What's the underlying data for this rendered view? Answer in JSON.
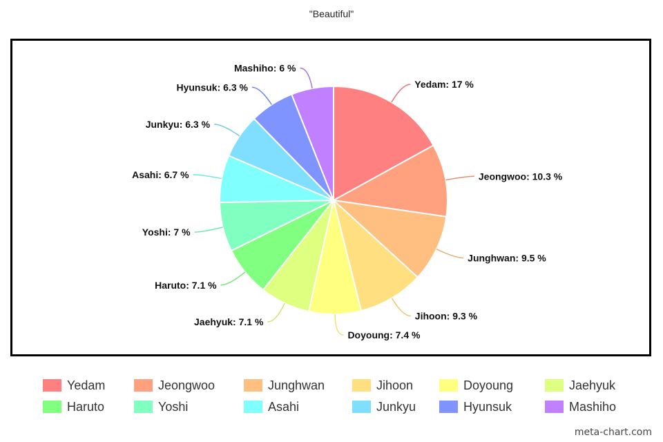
{
  "chart_data": {
    "type": "pie",
    "title": "\"Beautiful\"",
    "unit": "%",
    "slices": [
      {
        "name": "Yedam",
        "value": 17,
        "label": "Yedam: 17 %",
        "color": "#FF8080"
      },
      {
        "name": "Jeongwoo",
        "value": 10.3,
        "label": "Jeongwoo: 10.3 %",
        "color": "#FFA07F"
      },
      {
        "name": "Junghwan",
        "value": 9.5,
        "label": "Junghwan: 9.5 %",
        "color": "#FFBF80"
      },
      {
        "name": "Jihoon",
        "value": 9.3,
        "label": "Jihoon: 9.3 %",
        "color": "#FFDF80"
      },
      {
        "name": "Doyoung",
        "value": 7.4,
        "label": "Doyoung: 7.4 %",
        "color": "#FFFF80"
      },
      {
        "name": "Jaehyuk",
        "value": 7.1,
        "label": "Jaehyuk: 7.1 %",
        "color": "#DFFF80"
      },
      {
        "name": "Haruto",
        "value": 7.1,
        "label": "Haruto: 7.1 %",
        "color": "#80FF80"
      },
      {
        "name": "Yoshi",
        "value": 7,
        "label": "Yoshi: 7 %",
        "color": "#80FFC0"
      },
      {
        "name": "Asahi",
        "value": 6.7,
        "label": "Asahi: 6.7 %",
        "color": "#80FFFF"
      },
      {
        "name": "Junkyu",
        "value": 6.3,
        "label": "Junkyu: 6.3 %",
        "color": "#80DFFF"
      },
      {
        "name": "Hyunsuk",
        "value": 6.3,
        "label": "Hyunsuk: 6.3 %",
        "color": "#8094FF"
      },
      {
        "name": "Mashiho",
        "value": 6,
        "label": "Mashiho: 6 %",
        "color": "#C080FF"
      }
    ],
    "legend_position": "bottom"
  },
  "credit": "meta-chart.com"
}
